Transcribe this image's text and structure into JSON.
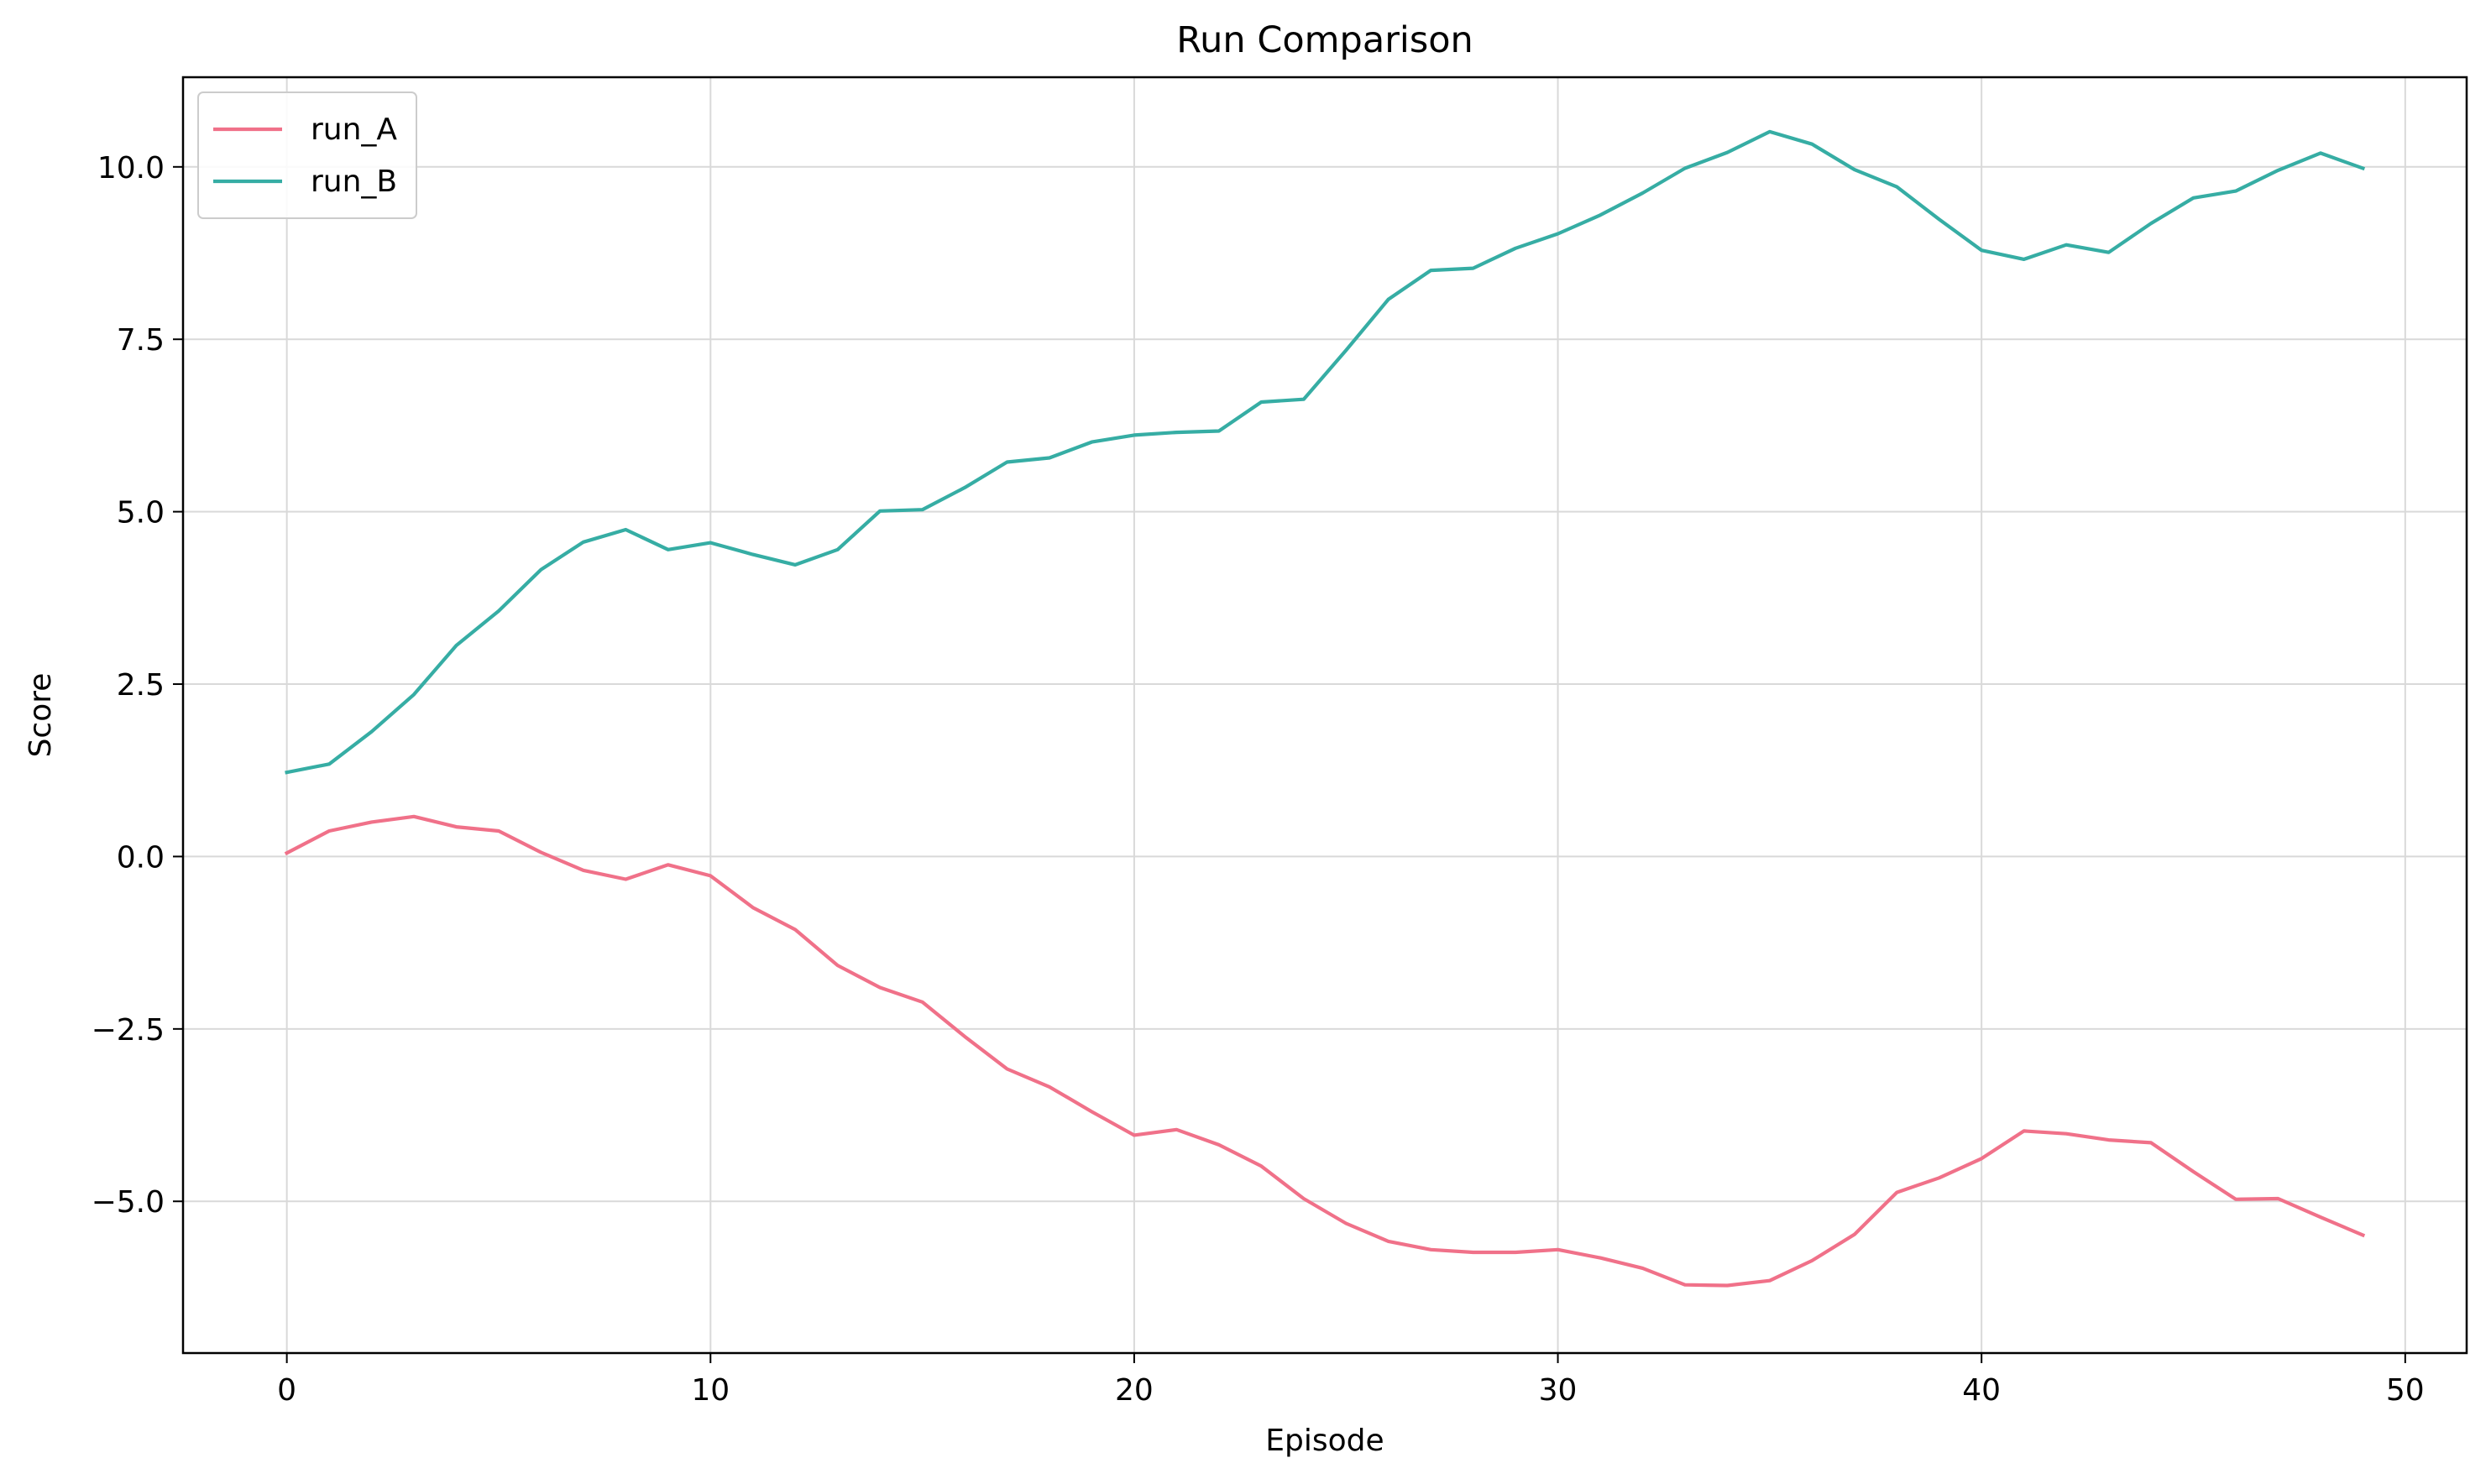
{
  "chart_data": {
    "type": "line",
    "title": "Run Comparison",
    "xlabel": "Episode",
    "ylabel": "Score",
    "xlim": [
      -2.45,
      51.45
    ],
    "ylim": [
      -7.2,
      11.3
    ],
    "xticks": [
      0,
      10,
      20,
      30,
      40,
      50
    ],
    "xtick_labels": [
      "0",
      "10",
      "20",
      "30",
      "40",
      "50"
    ],
    "yticks": [
      -5.0,
      -2.5,
      0.0,
      2.5,
      5.0,
      7.5,
      10.0
    ],
    "ytick_labels": [
      "−5.0",
      "−2.5",
      "0.0",
      "2.5",
      "5.0",
      "7.5",
      "10.0"
    ],
    "grid": true,
    "legend_position": "top-left",
    "x": [
      0,
      1,
      2,
      3,
      4,
      5,
      6,
      7,
      8,
      9,
      10,
      11,
      12,
      13,
      14,
      15,
      16,
      17,
      18,
      19,
      20,
      21,
      22,
      23,
      24,
      25,
      26,
      27,
      28,
      29,
      30,
      31,
      32,
      33,
      34,
      35,
      36,
      37,
      38,
      39,
      40,
      41,
      42,
      43,
      44,
      45,
      46,
      47,
      48,
      49
    ],
    "series": [
      {
        "name": "run_A",
        "color": "#f07189",
        "values": [
          0.05,
          0.37,
          0.5,
          0.58,
          0.43,
          0.37,
          0.06,
          -0.2,
          -0.33,
          -0.12,
          -0.28,
          -0.74,
          -1.06,
          -1.58,
          -1.9,
          -2.11,
          -2.61,
          -3.08,
          -3.34,
          -3.7,
          -4.04,
          -3.96,
          -4.18,
          -4.49,
          -4.96,
          -5.32,
          -5.58,
          -5.7,
          -5.74,
          -5.74,
          -5.7,
          -5.82,
          -5.97,
          -6.21,
          -6.22,
          -6.15,
          -5.86,
          -5.48,
          -4.87,
          -4.66,
          -4.38,
          -3.98,
          -4.02,
          -4.11,
          -4.15,
          -4.57,
          -4.97,
          -4.96,
          -5.23,
          -5.49
        ]
      },
      {
        "name": "run_B",
        "color": "#36ada4",
        "values": [
          1.22,
          1.34,
          1.81,
          2.35,
          3.06,
          3.56,
          4.16,
          4.56,
          4.74,
          4.45,
          4.55,
          4.38,
          4.23,
          4.45,
          5.01,
          5.03,
          5.35,
          5.72,
          5.78,
          6.01,
          6.11,
          6.15,
          6.17,
          6.59,
          6.63,
          7.34,
          8.08,
          8.5,
          8.53,
          8.82,
          9.03,
          9.3,
          9.62,
          9.98,
          10.21,
          10.51,
          10.33,
          9.96,
          9.71,
          9.24,
          8.79,
          8.66,
          8.87,
          8.76,
          9.18,
          9.55,
          9.65,
          9.95,
          10.2,
          9.98
        ]
      }
    ]
  }
}
